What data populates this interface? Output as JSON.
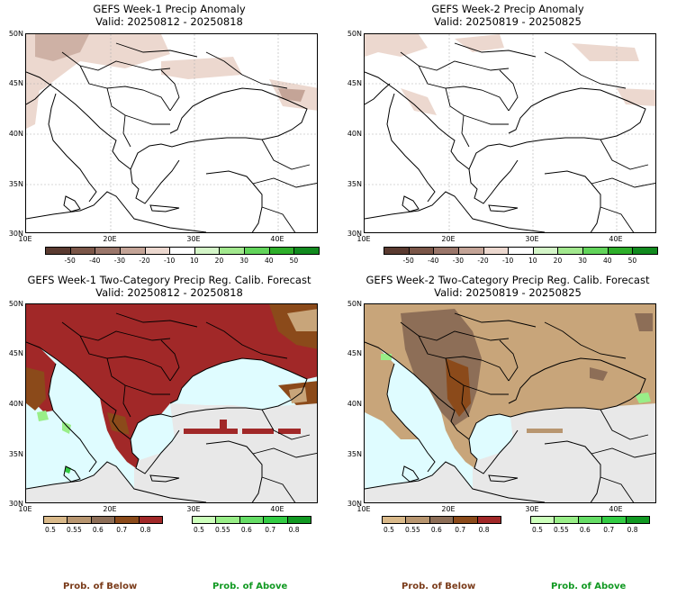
{
  "panels": [
    {
      "title": "GEFS Week-1 Precip Anomaly",
      "valid": "Valid: 20250812 - 20250818"
    },
    {
      "title": "GEFS Week-2 Precip Anomaly",
      "valid": "Valid: 20250819 - 20250825"
    },
    {
      "title": "GEFS Week-1 Two-Category Precip Reg. Calib. Forecast",
      "valid": "Valid: 20250812 - 20250818"
    },
    {
      "title": "GEFS Week-2 Two-Category Precip Reg. Calib. Forecast",
      "valid": "Valid: 20250819 - 20250825"
    }
  ],
  "lat_labels": [
    "50N",
    "45N",
    "40N",
    "35N",
    "30N"
  ],
  "lon_labels": [
    "10E",
    "20E",
    "30E",
    "40E"
  ],
  "anomaly_colorbar": {
    "labels": [
      "-50",
      "-40",
      "-30",
      "-20",
      "-10",
      "10",
      "20",
      "30",
      "40",
      "50"
    ],
    "colors": [
      "#5a3a30",
      "#7b5648",
      "#9a766a",
      "#c4a497",
      "#ecd8cf",
      "#ffffff",
      "#d4f5c8",
      "#a2e88e",
      "#62d45a",
      "#2eae2a",
      "#118a1e"
    ]
  },
  "below_colorbar": {
    "labels": [
      "0.5",
      "0.55",
      "0.6",
      "0.7",
      "0.8"
    ],
    "colors": [
      "#d9b98a",
      "#b89670",
      "#8d6e57",
      "#8b4a1a",
      "#a12828"
    ]
  },
  "above_colorbar": {
    "labels": [
      "0.5",
      "0.55",
      "0.6",
      "0.7",
      "0.8"
    ],
    "colors": [
      "#ccffbb",
      "#99ee88",
      "#66dd66",
      "#33cc44",
      "#119922"
    ]
  },
  "legend": {
    "below": "Prob. of Below",
    "above": "Prob. of Above",
    "below_color": "#7a3b1a",
    "above_color": "#119922"
  },
  "colors": {
    "sea": "#dffcff",
    "no_signal_land": "#e8e8e8",
    "dry_strong": "#a12828",
    "dry_moderate": "#8b4a1a",
    "dry_weak": "#c8a57a",
    "wet": "#99ee88"
  }
}
